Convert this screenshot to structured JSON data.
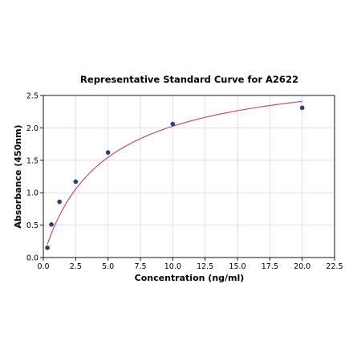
{
  "chart_data": {
    "type": "scatter",
    "title": "Representative Standard Curve for A2622",
    "xlabel": "Concentration (ng/ml)",
    "ylabel": "Absorbance (450nm)",
    "xlim": [
      0,
      22.5
    ],
    "ylim": [
      0,
      2.5
    ],
    "x_ticks": [
      "0.0",
      "2.5",
      "5.0",
      "7.5",
      "10.0",
      "12.5",
      "15.0",
      "17.5",
      "20.0",
      "22.5"
    ],
    "y_ticks": [
      "0.0",
      "0.5",
      "1.0",
      "1.5",
      "2.0",
      "2.5"
    ],
    "grid": true,
    "series": [
      {
        "points_x": [
          0.313,
          0.625,
          1.25,
          2.5,
          5.0,
          10.0,
          20.0
        ],
        "points_y": [
          0.15,
          0.51,
          0.86,
          1.17,
          1.62,
          2.06,
          2.31
        ],
        "color": "#2c3e73",
        "fit_curve": {
          "type": "4PL",
          "color": "#c0506a",
          "params": {
            "a": 0.0,
            "b": 0.97,
            "c": 4.7,
            "d": 3.0
          }
        }
      }
    ]
  }
}
